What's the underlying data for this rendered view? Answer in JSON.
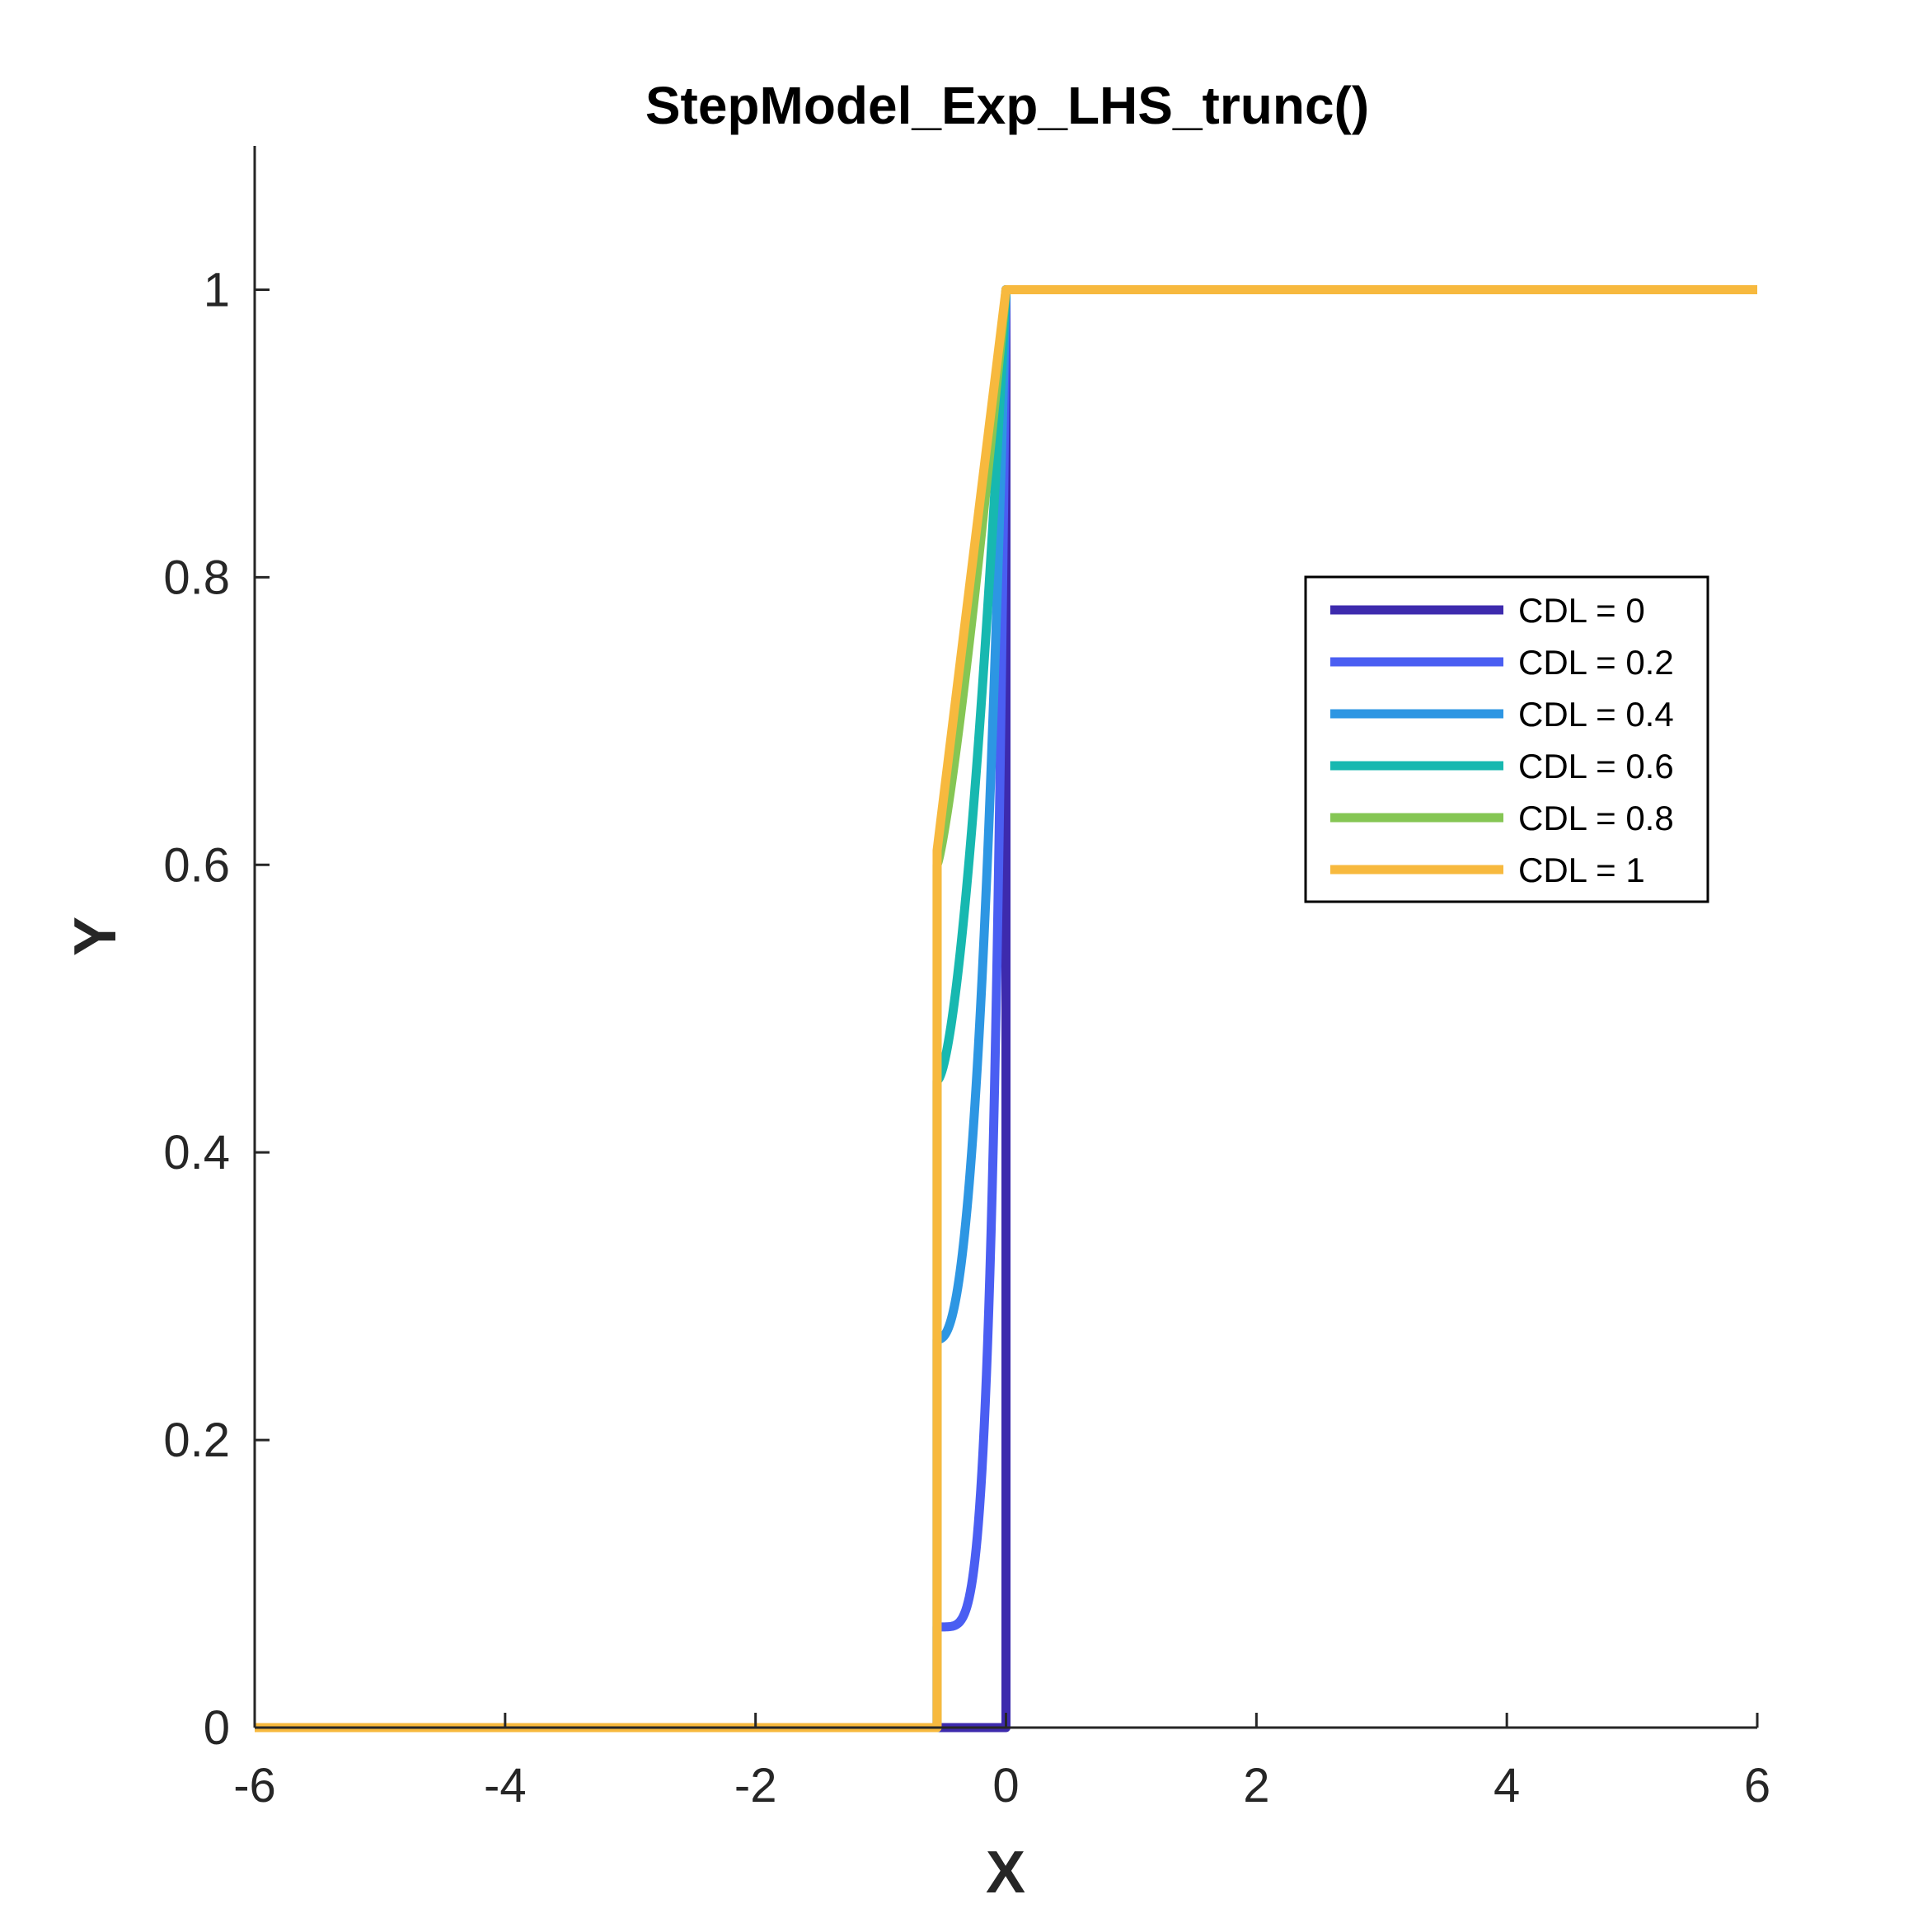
{
  "chart_data": {
    "type": "line",
    "title": "StepModel_Exp_LHS_trunc()",
    "xlabel": "X",
    "ylabel": "Y",
    "xlim": [
      -6,
      6
    ],
    "ylim": [
      0,
      1.1
    ],
    "x_ticks": [
      -6,
      -4,
      -2,
      0,
      2,
      4,
      6
    ],
    "y_ticks": [
      0,
      0.2,
      0.4,
      0.6,
      0.8,
      1
    ],
    "x_tick_labels": [
      "-6",
      "-4",
      "-2",
      "0",
      "2",
      "4",
      "6"
    ],
    "y_tick_labels": [
      "0",
      "0.2",
      "0.4",
      "0.6",
      "0.8",
      "1"
    ],
    "grid": false,
    "legend_position": "right",
    "series": [
      {
        "name": "CDL = 0",
        "color": "#3d2aad",
        "cdl": 0
      },
      {
        "name": "CDL = 0.2",
        "color": "#4a5ef2",
        "cdl": 0.2
      },
      {
        "name": "CDL = 0.4",
        "color": "#2d96e3",
        "cdl": 0.4
      },
      {
        "name": "CDL = 0.6",
        "color": "#17b8b0",
        "cdl": 0.6
      },
      {
        "name": "CDL = 0.8",
        "color": "#85c654",
        "cdl": 0.8
      },
      {
        "name": "CDL = 1",
        "color": "#f7b93e",
        "cdl": 1
      }
    ],
    "x_step_start": -0.55,
    "x_step_end": 0,
    "jump_at_start": [
      0,
      0.07,
      0.27,
      0.45,
      0.6,
      0.61
    ]
  }
}
